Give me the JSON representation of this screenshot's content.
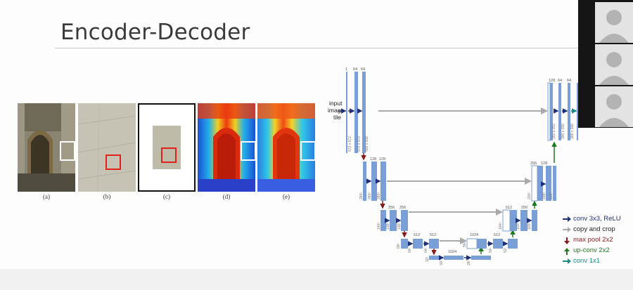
{
  "slide": {
    "title": "Encoder-Decoder"
  },
  "figure": {
    "captions": [
      "(a)",
      "(b)",
      "(c)",
      "(d)",
      "(e)"
    ]
  },
  "unet": {
    "input_label_lines": [
      "input",
      "image",
      "tile"
    ],
    "channel_labels": {
      "l1": [
        "1",
        "64",
        "64"
      ],
      "l2": [
        "128",
        "128"
      ],
      "l3": [
        "256",
        "256"
      ],
      "l4": [
        "512",
        "512"
      ],
      "l5": [
        "1024"
      ],
      "bottom": "1024",
      "d4": [
        "1024",
        "512"
      ],
      "d3": [
        "512",
        "256"
      ],
      "d2": [
        "256",
        "128"
      ],
      "d1": [
        "128",
        "64",
        "64"
      ]
    },
    "size_labels": {
      "l1": [
        "572 x 572",
        "570 x 570",
        "568 x 568"
      ],
      "l2": [
        "284²",
        "282²",
        "280²"
      ],
      "l3": [
        "140²",
        "138²",
        "136²"
      ],
      "l4": [
        "68²",
        "66²",
        "64²"
      ],
      "l5": [
        "32²",
        "30²",
        "28²"
      ],
      "d4": [
        "56²",
        "54²",
        "52²"
      ],
      "d3": [
        "104²",
        "102²",
        "100²"
      ],
      "d2": [
        "200²",
        "198²",
        "196²"
      ],
      "d1": [
        "392 x 392",
        "390 x 390",
        "388 x 388"
      ]
    }
  },
  "legend": {
    "items": [
      {
        "label": "conv 3x3, ReLU",
        "color": "#1f2f7a",
        "dir": "right"
      },
      {
        "label": "copy and crop",
        "color": "#aaaaaa",
        "dir": "right"
      },
      {
        "label": "max pool 2x2",
        "color": "#8b1a1a",
        "dir": "down"
      },
      {
        "label": "up-conv 2x2",
        "color": "#1e7a1e",
        "dir": "up"
      },
      {
        "label": "conv 1x1",
        "color": "#1a8a8a",
        "dir": "right"
      }
    ]
  },
  "colors": {
    "feature_map": "#7a9fd6",
    "skip_arrow": "#aaaaaa",
    "conv_arrow": "#1f2f7a"
  },
  "video": {
    "participants": [
      "avatar-1",
      "avatar-2",
      "avatar-3"
    ]
  }
}
